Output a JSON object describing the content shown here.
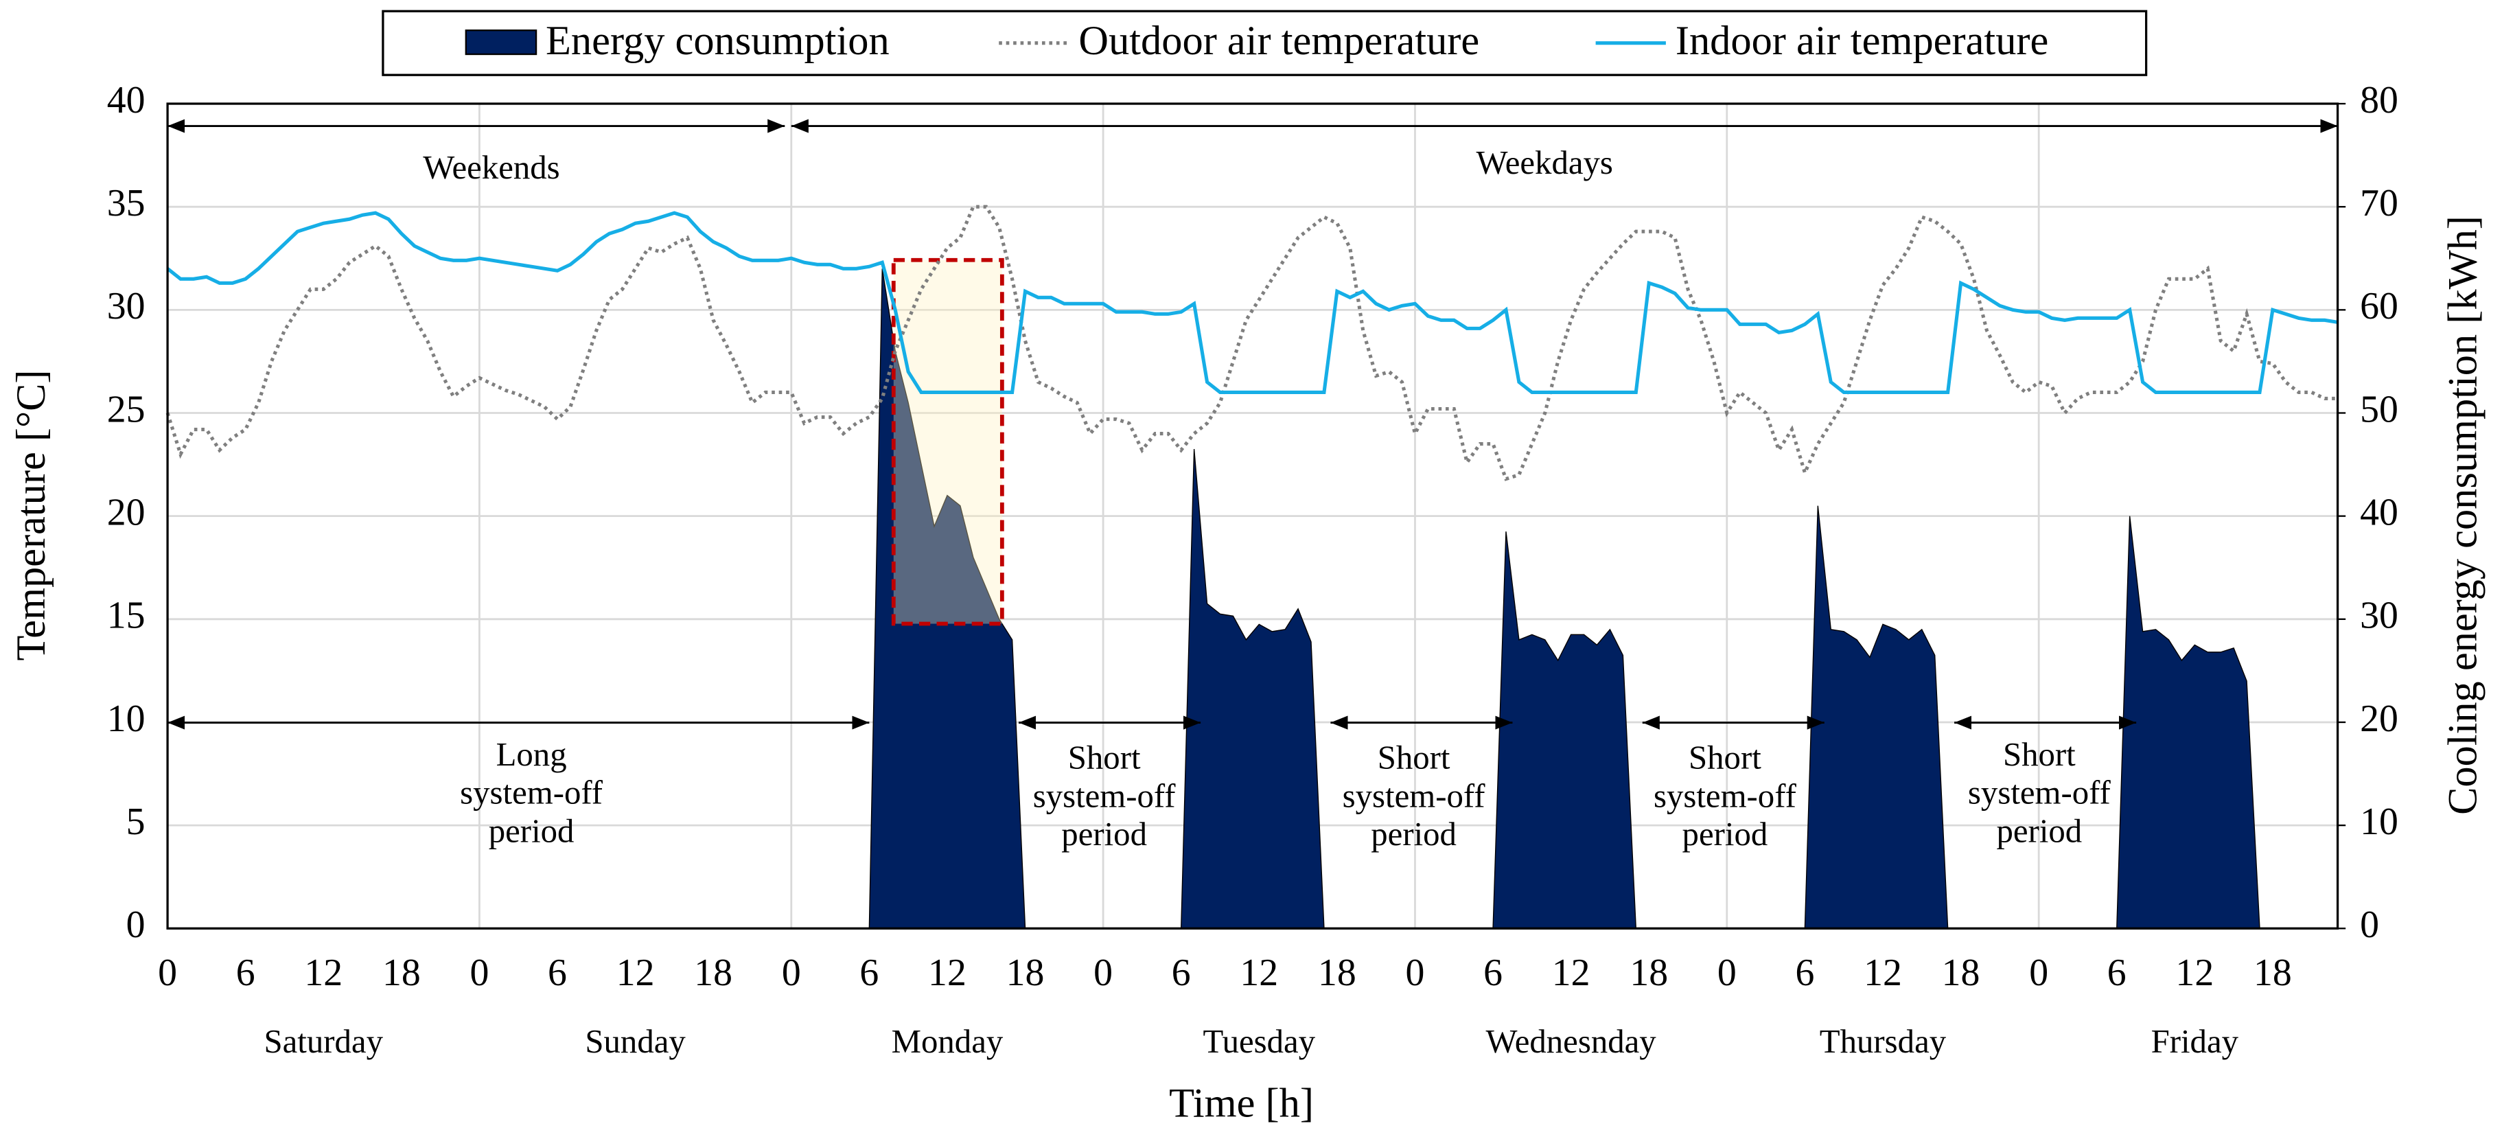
{
  "chart_data": {
    "type": "combo",
    "xlabel": "Time [h]",
    "ylabel": "Temperature [°C]",
    "y2label": "Cooling energy consumption [kWh]",
    "xlim": [
      0,
      167
    ],
    "ylim": [
      0,
      40
    ],
    "y2lim": [
      0,
      80
    ],
    "yticks": [
      0,
      5,
      10,
      15,
      20,
      25,
      30,
      35,
      40
    ],
    "y2ticks": [
      0,
      10,
      20,
      30,
      40,
      50,
      60,
      70,
      80
    ],
    "xticks": [
      0,
      6,
      12,
      18,
      {
        "value": 24,
        "label": "0"
      },
      {
        "value": 30,
        "label": "6"
      },
      {
        "value": 36,
        "label": "12"
      },
      {
        "value": 42,
        "label": "18"
      },
      {
        "value": 48,
        "label": "0"
      },
      {
        "value": 54,
        "label": "6"
      },
      {
        "value": 60,
        "label": "12"
      },
      {
        "value": 66,
        "label": "18"
      },
      {
        "value": 72,
        "label": "0"
      },
      {
        "value": 78,
        "label": "6"
      },
      {
        "value": 84,
        "label": "12"
      },
      {
        "value": 90,
        "label": "18"
      },
      {
        "value": 96,
        "label": "0"
      },
      {
        "value": 102,
        "label": "6"
      },
      {
        "value": 108,
        "label": "12"
      },
      {
        "value": 114,
        "label": "18"
      },
      {
        "value": 120,
        "label": "0"
      },
      {
        "value": 126,
        "label": "6"
      },
      {
        "value": 132,
        "label": "12"
      },
      {
        "value": 138,
        "label": "18"
      },
      {
        "value": 144,
        "label": "0"
      },
      {
        "value": 150,
        "label": "6"
      },
      {
        "value": 156,
        "label": "12"
      },
      {
        "value": 162,
        "label": "18"
      }
    ],
    "grid": true,
    "legend": "top",
    "days": [
      "Saturday",
      "Sunday",
      "Monday",
      "Tuesday",
      "Wednesnday",
      "Thursday",
      "Friday"
    ],
    "annotations": [
      {
        "text": [
          "Weekends"
        ]
      },
      {
        "text": [
          "Weekdays"
        ]
      },
      {
        "text": [
          "Long",
          "system-off",
          "period"
        ]
      },
      {
        "text": [
          "Short",
          "system-off",
          "period"
        ]
      },
      {
        "text": [
          "Short",
          "system-off",
          "period"
        ]
      },
      {
        "text": [
          "Short",
          "system-off",
          "period"
        ]
      },
      {
        "text": [
          "Short",
          "system-off",
          "period"
        ]
      }
    ],
    "x": [
      0,
      1,
      2,
      3,
      4,
      5,
      6,
      7,
      8,
      9,
      10,
      11,
      12,
      13,
      14,
      15,
      16,
      17,
      18,
      19,
      20,
      21,
      22,
      23,
      24,
      25,
      26,
      27,
      28,
      29,
      30,
      31,
      32,
      33,
      34,
      35,
      36,
      37,
      38,
      39,
      40,
      41,
      42,
      43,
      44,
      45,
      46,
      47,
      48,
      49,
      50,
      51,
      52,
      53,
      54,
      55,
      56,
      57,
      58,
      59,
      60,
      61,
      62,
      63,
      64,
      65,
      66,
      67,
      68,
      69,
      70,
      71,
      72,
      73,
      74,
      75,
      76,
      77,
      78,
      79,
      80,
      81,
      82,
      83,
      84,
      85,
      86,
      87,
      88,
      89,
      90,
      91,
      92,
      93,
      94,
      95,
      96,
      97,
      98,
      99,
      100,
      101,
      102,
      103,
      104,
      105,
      106,
      107,
      108,
      109,
      110,
      111,
      112,
      113,
      114,
      115,
      116,
      117,
      118,
      119,
      120,
      121,
      122,
      123,
      124,
      125,
      126,
      127,
      128,
      129,
      130,
      131,
      132,
      133,
      134,
      135,
      136,
      137,
      138,
      139,
      140,
      141,
      142,
      143,
      144,
      145,
      146,
      147,
      148,
      149,
      150,
      151,
      152,
      153,
      154,
      155,
      156,
      157,
      158,
      159,
      160,
      161,
      162,
      163,
      164,
      165,
      166,
      167
    ],
    "series": [
      {
        "name": "Energy consumption",
        "kind": "area",
        "axis": "y2",
        "color": "#002060",
        "values": [
          0,
          0,
          0,
          0,
          0,
          0,
          0,
          0,
          0,
          0,
          0,
          0,
          0,
          0,
          0,
          0,
          0,
          0,
          0,
          0,
          0,
          0,
          0,
          0,
          0,
          0,
          0,
          0,
          0,
          0,
          0,
          0,
          0,
          0,
          0,
          0,
          0,
          0,
          0,
          0,
          0,
          0,
          0,
          0,
          0,
          0,
          0,
          0,
          0,
          0,
          0,
          0,
          0,
          0,
          0,
          64,
          56,
          51,
          45,
          39,
          42,
          41,
          36,
          33,
          30,
          28,
          0,
          0,
          0,
          0,
          0,
          0,
          0,
          0,
          0,
          0,
          0,
          0,
          0,
          46.5,
          31.5,
          30.5,
          30.3,
          28,
          29.5,
          28.8,
          29,
          31,
          27.8,
          0,
          0,
          0,
          0,
          0,
          0,
          0,
          0,
          0,
          0,
          0,
          0,
          0,
          0,
          38.5,
          28,
          28.5,
          28,
          26,
          28.5,
          28.5,
          27.5,
          29,
          26.5,
          0,
          0,
          0,
          0,
          0,
          0,
          0,
          0,
          0,
          0,
          0,
          0,
          0,
          0,
          41,
          29,
          28.8,
          28,
          26.3,
          29.5,
          29,
          28,
          29,
          26.5,
          0,
          0,
          0,
          0,
          0,
          0,
          0,
          0,
          0,
          0,
          0,
          0,
          0,
          0,
          40,
          28.8,
          29,
          28,
          26,
          27.5,
          26.8,
          26.8,
          27.2,
          24,
          0,
          0,
          0,
          0,
          0,
          0,
          0
        ]
      },
      {
        "name": "Outdoor air temperature",
        "kind": "dotted",
        "color": "#7f7f7f",
        "values": [
          25,
          23,
          24.2,
          24.2,
          23.2,
          23.8,
          24.2,
          25.5,
          27.5,
          29,
          30,
          31,
          31,
          31.5,
          32.3,
          32.7,
          33.1,
          32.6,
          31,
          29.6,
          28.5,
          27,
          25.8,
          26.3,
          26.7,
          26.4,
          26.1,
          25.9,
          25.6,
          25.3,
          24.7,
          25.3,
          27.1,
          29,
          30.5,
          31,
          32,
          33,
          32.8,
          33.2,
          33.5,
          32,
          29.5,
          28.3,
          27,
          25.5,
          26,
          26,
          26,
          24.5,
          24.8,
          24.8,
          24,
          24.5,
          24.8,
          25.7,
          28,
          29.5,
          31,
          32,
          33,
          33.5,
          35,
          35,
          34,
          31.5,
          28.5,
          26.5,
          26.2,
          25.8,
          25.5,
          24,
          24.7,
          24.7,
          24.5,
          23.2,
          24,
          24,
          23.2,
          24,
          24.5,
          25.5,
          27.5,
          29.5,
          30.5,
          31.5,
          32.5,
          33.5,
          34,
          34.5,
          34.2,
          33,
          29,
          26.8,
          27,
          26.5,
          24,
          25.2,
          25.2,
          25.2,
          22.6,
          23.5,
          23.5,
          21.8,
          22,
          23.5,
          25,
          27.5,
          29.5,
          31,
          31.8,
          32.5,
          33.2,
          33.8,
          33.8,
          33.8,
          33.5,
          31,
          29.5,
          27.5,
          25,
          26,
          25.5,
          25,
          23.2,
          24.2,
          22.1,
          23.5,
          24.5,
          25.5,
          27.5,
          29.5,
          31.2,
          32,
          33,
          34.5,
          34.3,
          33.8,
          33.2,
          31.5,
          29,
          27.8,
          26.5,
          26,
          26.5,
          26.3,
          25,
          25.7,
          26,
          26,
          26,
          26.5,
          27.5,
          30,
          31.5,
          31.5,
          31.5,
          32,
          28.5,
          28,
          29.8,
          27.5,
          27.4,
          26.5,
          26,
          26,
          25.7,
          25.7
        ]
      },
      {
        "name": "Indoor air temperature",
        "kind": "solid",
        "color": "#16aee6",
        "values": [
          32,
          31.5,
          31.5,
          31.6,
          31.3,
          31.3,
          31.5,
          32,
          32.6,
          33.2,
          33.8,
          34,
          34.2,
          34.3,
          34.4,
          34.6,
          34.7,
          34.4,
          33.7,
          33.1,
          32.8,
          32.5,
          32.4,
          32.4,
          32.5,
          32.4,
          32.3,
          32.2,
          32.1,
          32,
          31.9,
          32.2,
          32.7,
          33.3,
          33.7,
          33.9,
          34.2,
          34.3,
          34.5,
          34.7,
          34.5,
          33.8,
          33.3,
          33,
          32.6,
          32.4,
          32.4,
          32.4,
          32.5,
          32.3,
          32.2,
          32.2,
          32,
          32,
          32.1,
          32.3,
          30,
          27,
          26,
          26,
          26,
          26,
          26,
          26,
          26,
          26,
          30.9,
          30.6,
          30.6,
          30.3,
          30.3,
          30.3,
          30.3,
          29.9,
          29.9,
          29.9,
          29.8,
          29.8,
          29.9,
          30.3,
          26.5,
          26,
          26,
          26,
          26,
          26,
          26,
          26,
          26,
          26,
          30.9,
          30.6,
          30.9,
          30.3,
          30,
          30.2,
          30.3,
          29.7,
          29.5,
          29.5,
          29.1,
          29.1,
          29.5,
          30,
          26.5,
          26,
          26,
          26,
          26,
          26,
          26,
          26,
          26,
          26,
          31.3,
          31.1,
          30.8,
          30.1,
          30,
          30,
          30,
          29.3,
          29.3,
          29.3,
          28.9,
          29,
          29.3,
          29.8,
          26.5,
          26,
          26,
          26,
          26,
          26,
          26,
          26,
          26,
          26,
          31.3,
          31,
          30.6,
          30.2,
          30,
          29.9,
          29.9,
          29.6,
          29.5,
          29.6,
          29.6,
          29.6,
          29.6,
          30,
          26.5,
          26,
          26,
          26,
          26,
          26,
          26,
          26,
          26,
          26,
          30,
          29.8,
          29.6,
          29.5,
          29.5,
          29.4
        ]
      }
    ]
  }
}
